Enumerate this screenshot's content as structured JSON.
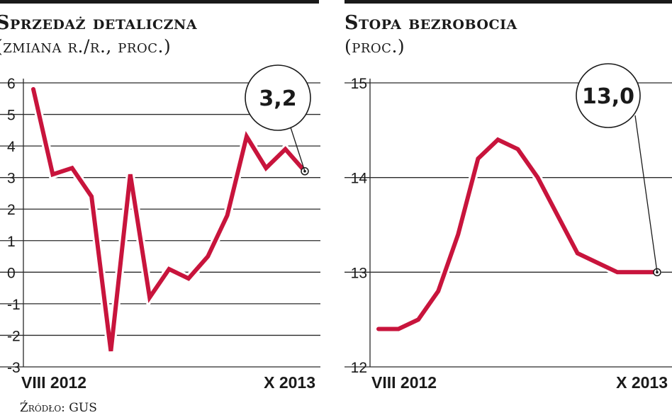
{
  "source": "Źródło: GUS",
  "chart_data": [
    {
      "type": "line",
      "title": "Sprzedaż detaliczna",
      "subtitle": "(zmiana r./r., proc.)",
      "x_labels": [
        "VIII 2012",
        "X 2013"
      ],
      "ylim": [
        -3,
        6
      ],
      "yticks": [
        6,
        5,
        4,
        3,
        2,
        1,
        0,
        -1,
        -2,
        -3
      ],
      "grid": true,
      "series": [
        {
          "values": [
            5.8,
            3.1,
            3.3,
            2.4,
            -2.5,
            3.1,
            -0.8,
            0.1,
            -0.2,
            0.5,
            1.8,
            4.3,
            3.3,
            3.9,
            3.2
          ]
        }
      ],
      "callout": "3,2",
      "line_color": "#c8143c"
    },
    {
      "type": "line",
      "title": "Stopa bezrobocia",
      "subtitle": "(proc.)",
      "x_labels": [
        "VIII 2012",
        "X 2013"
      ],
      "ylim": [
        12,
        15
      ],
      "yticks": [
        15,
        14,
        13,
        12
      ],
      "grid": true,
      "series": [
        {
          "values": [
            12.4,
            12.4,
            12.5,
            12.8,
            13.4,
            14.2,
            14.4,
            14.3,
            14.0,
            13.6,
            13.2,
            13.1,
            13.0,
            13.0,
            13.0
          ]
        }
      ],
      "callout": "13,0",
      "line_color": "#c8143c"
    }
  ]
}
